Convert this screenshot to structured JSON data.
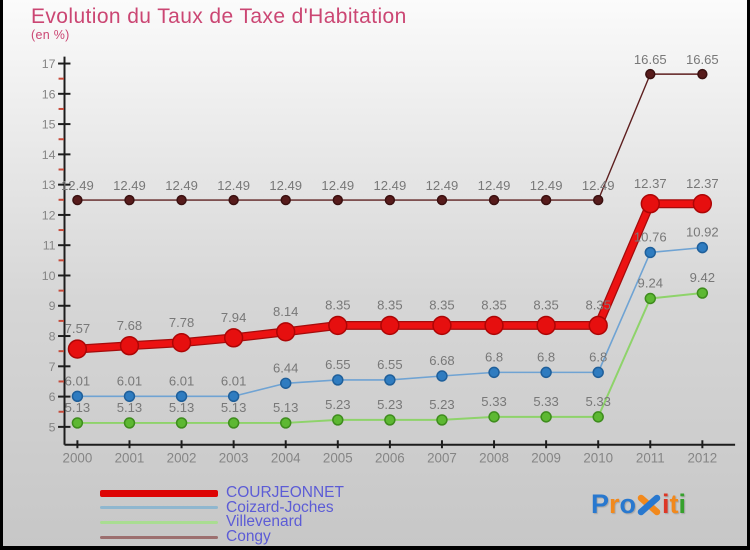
{
  "header": {
    "title": "Evolution du Taux de Taxe d'Habitation",
    "subtitle": "(en %)",
    "title_color": "#cb4673"
  },
  "chart_data": {
    "type": "line",
    "x": [
      2000,
      2001,
      2002,
      2003,
      2004,
      2005,
      2006,
      2007,
      2008,
      2009,
      2010,
      2011,
      2012
    ],
    "ylim": [
      5,
      17
    ],
    "y_major_step": 1,
    "y_minor_step": 0.5,
    "grid": false,
    "legend_position": "bottom-left",
    "axis_color": "#1c1c1c",
    "minor_tick_color": "#c64a3a",
    "tick_label_color": "#858585",
    "value_label_color": "#787878",
    "series": [
      {
        "name": "COURJEONNET",
        "values": [
          7.57,
          7.68,
          7.78,
          7.94,
          8.14,
          8.35,
          8.35,
          8.35,
          8.35,
          8.35,
          8.35,
          12.37,
          12.37
        ],
        "color": "#ec1212",
        "shadow_color": "#a50b0b",
        "dot_color": "#e60f0f",
        "dot_stroke": "#ad0505",
        "legend_color": "#dd0505",
        "line_width": 6.5,
        "dot_radius": 9,
        "label_offset": 16,
        "z": 1,
        "thick": true
      },
      {
        "name": "Coizard-Joches",
        "values": [
          6.01,
          6.01,
          6.01,
          6.01,
          6.44,
          6.55,
          6.55,
          6.68,
          6.8,
          6.8,
          6.8,
          10.76,
          10.92
        ],
        "color": "#6fa3d3",
        "shadow_color": "#6fa3d3",
        "dot_color": "#2f7cc0",
        "dot_stroke": "#1f5f9a",
        "legend_color": "#8fb7cf",
        "line_width": 1.6,
        "dot_radius": 5,
        "label_offset": 11,
        "z": 2,
        "thick": false
      },
      {
        "name": "Villevenard",
        "values": [
          5.13,
          5.13,
          5.13,
          5.13,
          5.13,
          5.23,
          5.23,
          5.23,
          5.33,
          5.33,
          5.33,
          9.24,
          9.42
        ],
        "color": "#8ed36a",
        "shadow_color": "#8ed36a",
        "dot_color": "#5db832",
        "dot_stroke": "#3e8c1d",
        "legend_color": "#a9dd92",
        "line_width": 2,
        "dot_radius": 5,
        "label_offset": 11,
        "z": 3,
        "thick": false
      },
      {
        "name": "Congy",
        "values": [
          12.49,
          12.49,
          12.49,
          12.49,
          12.49,
          12.49,
          12.49,
          12.49,
          12.49,
          12.49,
          12.49,
          16.65,
          16.65
        ],
        "color": "#5d1f1f",
        "shadow_color": "#5d1f1f",
        "dot_color": "#571b1b",
        "dot_stroke": "#3a1010",
        "legend_color": "#9c6f6f",
        "line_width": 1.4,
        "dot_radius": 4.5,
        "label_offset": 10,
        "z": 0,
        "thick": false
      }
    ]
  },
  "legend": {
    "text_color": "#5c5cd6"
  },
  "logo": {
    "alt": "Proxiti",
    "letters": [
      {
        "ch": "P",
        "color": "#2878cf"
      },
      {
        "ch": "r",
        "color": "#f2891c"
      },
      {
        "ch": "o",
        "color": "#2878cf"
      },
      {
        "ch": "x",
        "x_mark": true,
        "colors": [
          "#f2891c",
          "#2878cf"
        ]
      },
      {
        "ch": "i",
        "color": "#dd3726"
      },
      {
        "ch": "t",
        "color": "#f2891c"
      },
      {
        "ch": "i",
        "color": "#36a12d"
      }
    ]
  }
}
